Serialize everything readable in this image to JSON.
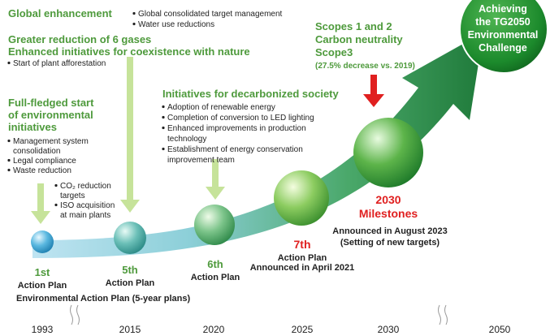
{
  "top_left": {
    "title": "Global enhancement",
    "bullets": [
      "Global consolidated target management",
      "Water use reductions"
    ]
  },
  "gases": {
    "title_lines": [
      "Greater reduction of 6 gases",
      "Enhanced initiatives for coexistence with nature"
    ],
    "bullets": [
      "Start of plant afforestation"
    ]
  },
  "fullfledged": {
    "title_lines": [
      "Full-fledged start",
      "of environmental",
      "initiatives"
    ],
    "bullets": [
      [
        "Management system",
        "consolidation"
      ],
      [
        "Legal compliance"
      ],
      [
        "Waste reduction"
      ]
    ],
    "sub_bullets": [
      [
        "CO₂ reduction",
        "targets"
      ],
      [
        "ISO acquisition",
        "at main plants"
      ]
    ]
  },
  "decarbonized": {
    "title": "Initiatives for decarbonized society",
    "bullets": [
      [
        "Adoption of renewable energy"
      ],
      [
        "Completion of conversion to LED lighting"
      ],
      [
        "Enhanced improvements in production",
        "technology"
      ],
      [
        "Establishment of energy conservation",
        "improvement team"
      ]
    ]
  },
  "scopes": {
    "lines": [
      "Scopes 1 and 2",
      "Carbon neutrality",
      "Scope3"
    ],
    "note": "(27.5% decrease vs. 2019)"
  },
  "goal": {
    "lines": [
      "Achieving",
      "the TG2050",
      "Environmental",
      "Challenge"
    ]
  },
  "plans": [
    {
      "ordinal": "1st",
      "label": "Action Plan"
    },
    {
      "ordinal": "5th",
      "label": "Action Plan"
    },
    {
      "ordinal": "6th",
      "label": "Action Plan"
    },
    {
      "ordinal": "7th",
      "label": "Action Plan",
      "note": "Announced in April 2021"
    }
  ],
  "milestones": {
    "lines": [
      "2030",
      "Milestones"
    ],
    "notes": [
      "Announced in August 2023",
      "(Setting of new targets)"
    ]
  },
  "plan_series": "Environmental Action Plan (5-year plans)",
  "years": [
    "1993",
    "2015",
    "2020",
    "2025",
    "2030",
    "2050"
  ]
}
